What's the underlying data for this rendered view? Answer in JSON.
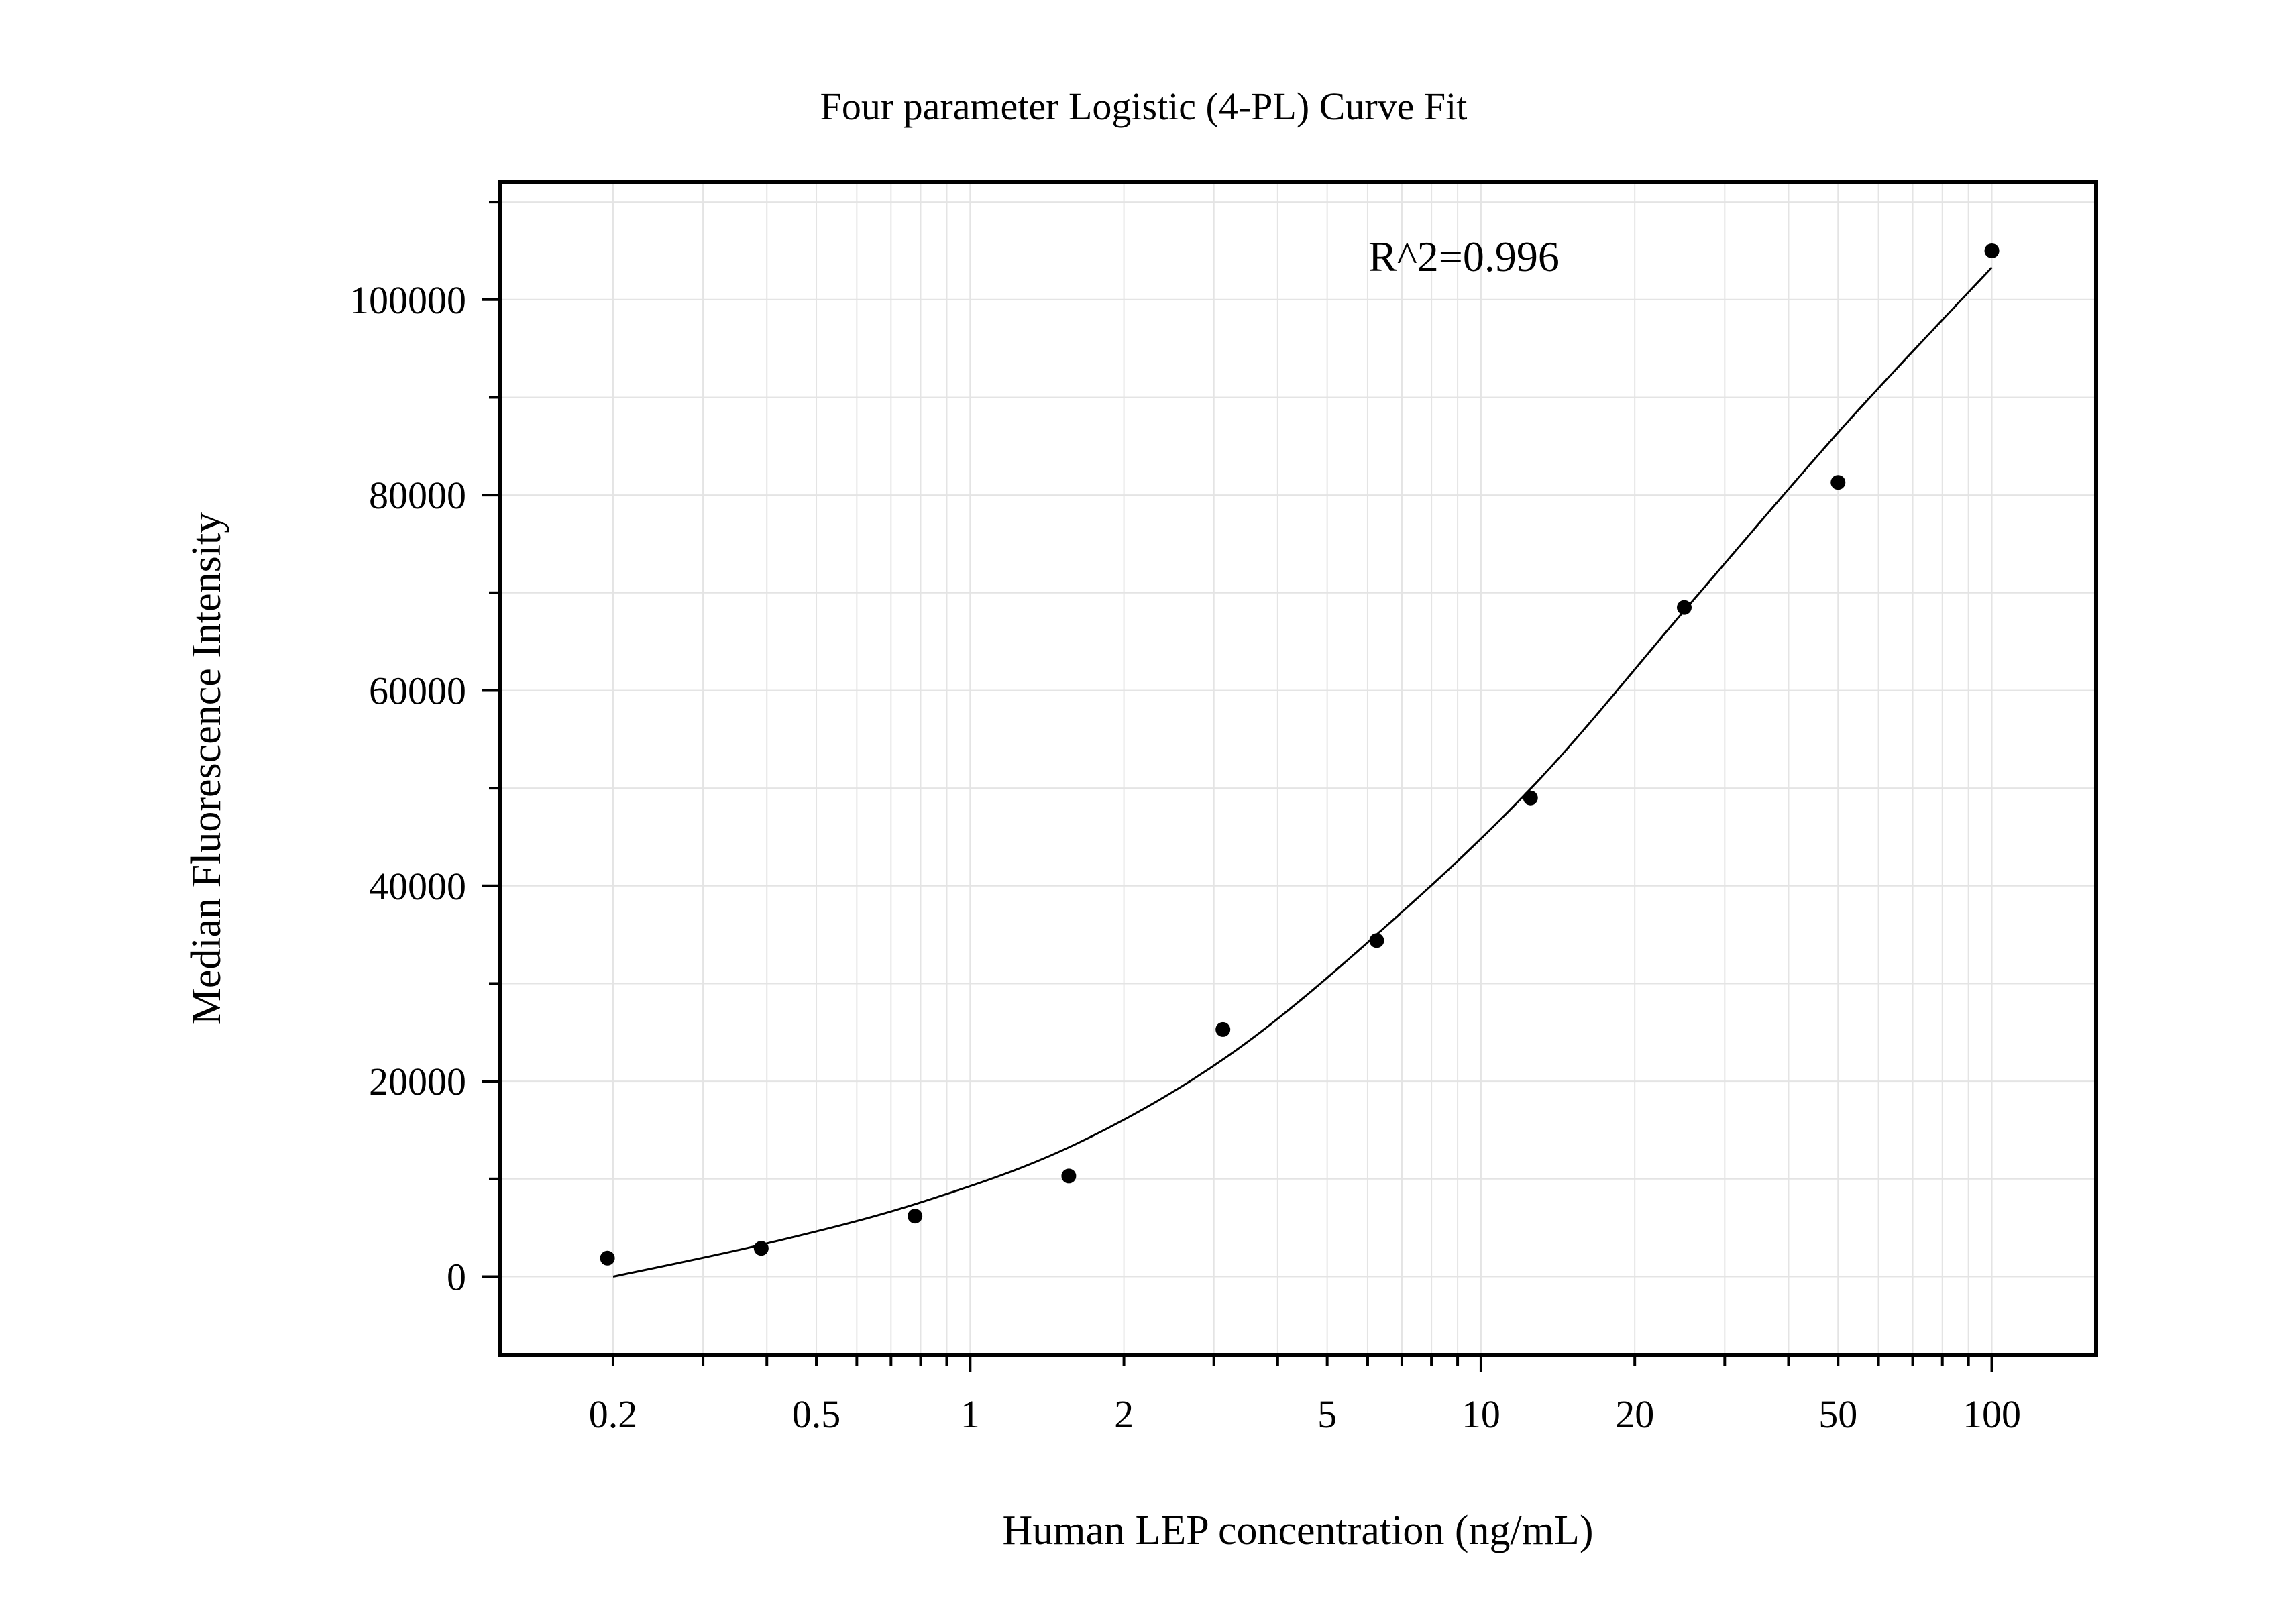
{
  "chart_data": {
    "type": "scatter",
    "title": "Four parameter Logistic (4-PL) Curve Fit",
    "xlabel": "Human LEP concentration (ng/mL)",
    "ylabel": "Median Fluorescence Intensity",
    "xscale": "log",
    "xlim": [
      0.12,
      160
    ],
    "ylim": [
      -8000,
      112000
    ],
    "x_ticks": [
      {
        "value": 0.2,
        "label": "0.2"
      },
      {
        "value": 0.5,
        "label": "0.5"
      },
      {
        "value": 1,
        "label": "1"
      },
      {
        "value": 2,
        "label": "2"
      },
      {
        "value": 5,
        "label": "5"
      },
      {
        "value": 10,
        "label": "10"
      },
      {
        "value": 20,
        "label": "20"
      },
      {
        "value": 50,
        "label": "50"
      },
      {
        "value": 100,
        "label": "100"
      }
    ],
    "y_ticks": [
      {
        "value": 0,
        "label": "0"
      },
      {
        "value": 20000,
        "label": "20000"
      },
      {
        "value": 40000,
        "label": "40000"
      },
      {
        "value": 60000,
        "label": "60000"
      },
      {
        "value": 80000,
        "label": "80000"
      },
      {
        "value": 100000,
        "label": "100000"
      }
    ],
    "grid": true,
    "annotation": "R^2=0.996",
    "points": {
      "x": [
        0.195,
        0.39,
        0.78,
        1.56,
        3.125,
        6.25,
        12.5,
        25,
        50,
        100
      ],
      "y": [
        1900,
        2900,
        6200,
        10300,
        25300,
        34400,
        49000,
        68500,
        81300,
        105000
      ]
    },
    "fit_curve": {
      "x": [
        0.2,
        0.4,
        0.8,
        1.6,
        3.2,
        6.4,
        12.8,
        25.6,
        51.2,
        100
      ],
      "y": [
        0,
        3400,
        7600,
        13500,
        22600,
        35500,
        50500,
        68800,
        87000,
        103300
      ]
    },
    "colors": {
      "points": "#000000",
      "curve": "#000000",
      "grid": "#e4e4e4",
      "frame": "#000000"
    }
  }
}
